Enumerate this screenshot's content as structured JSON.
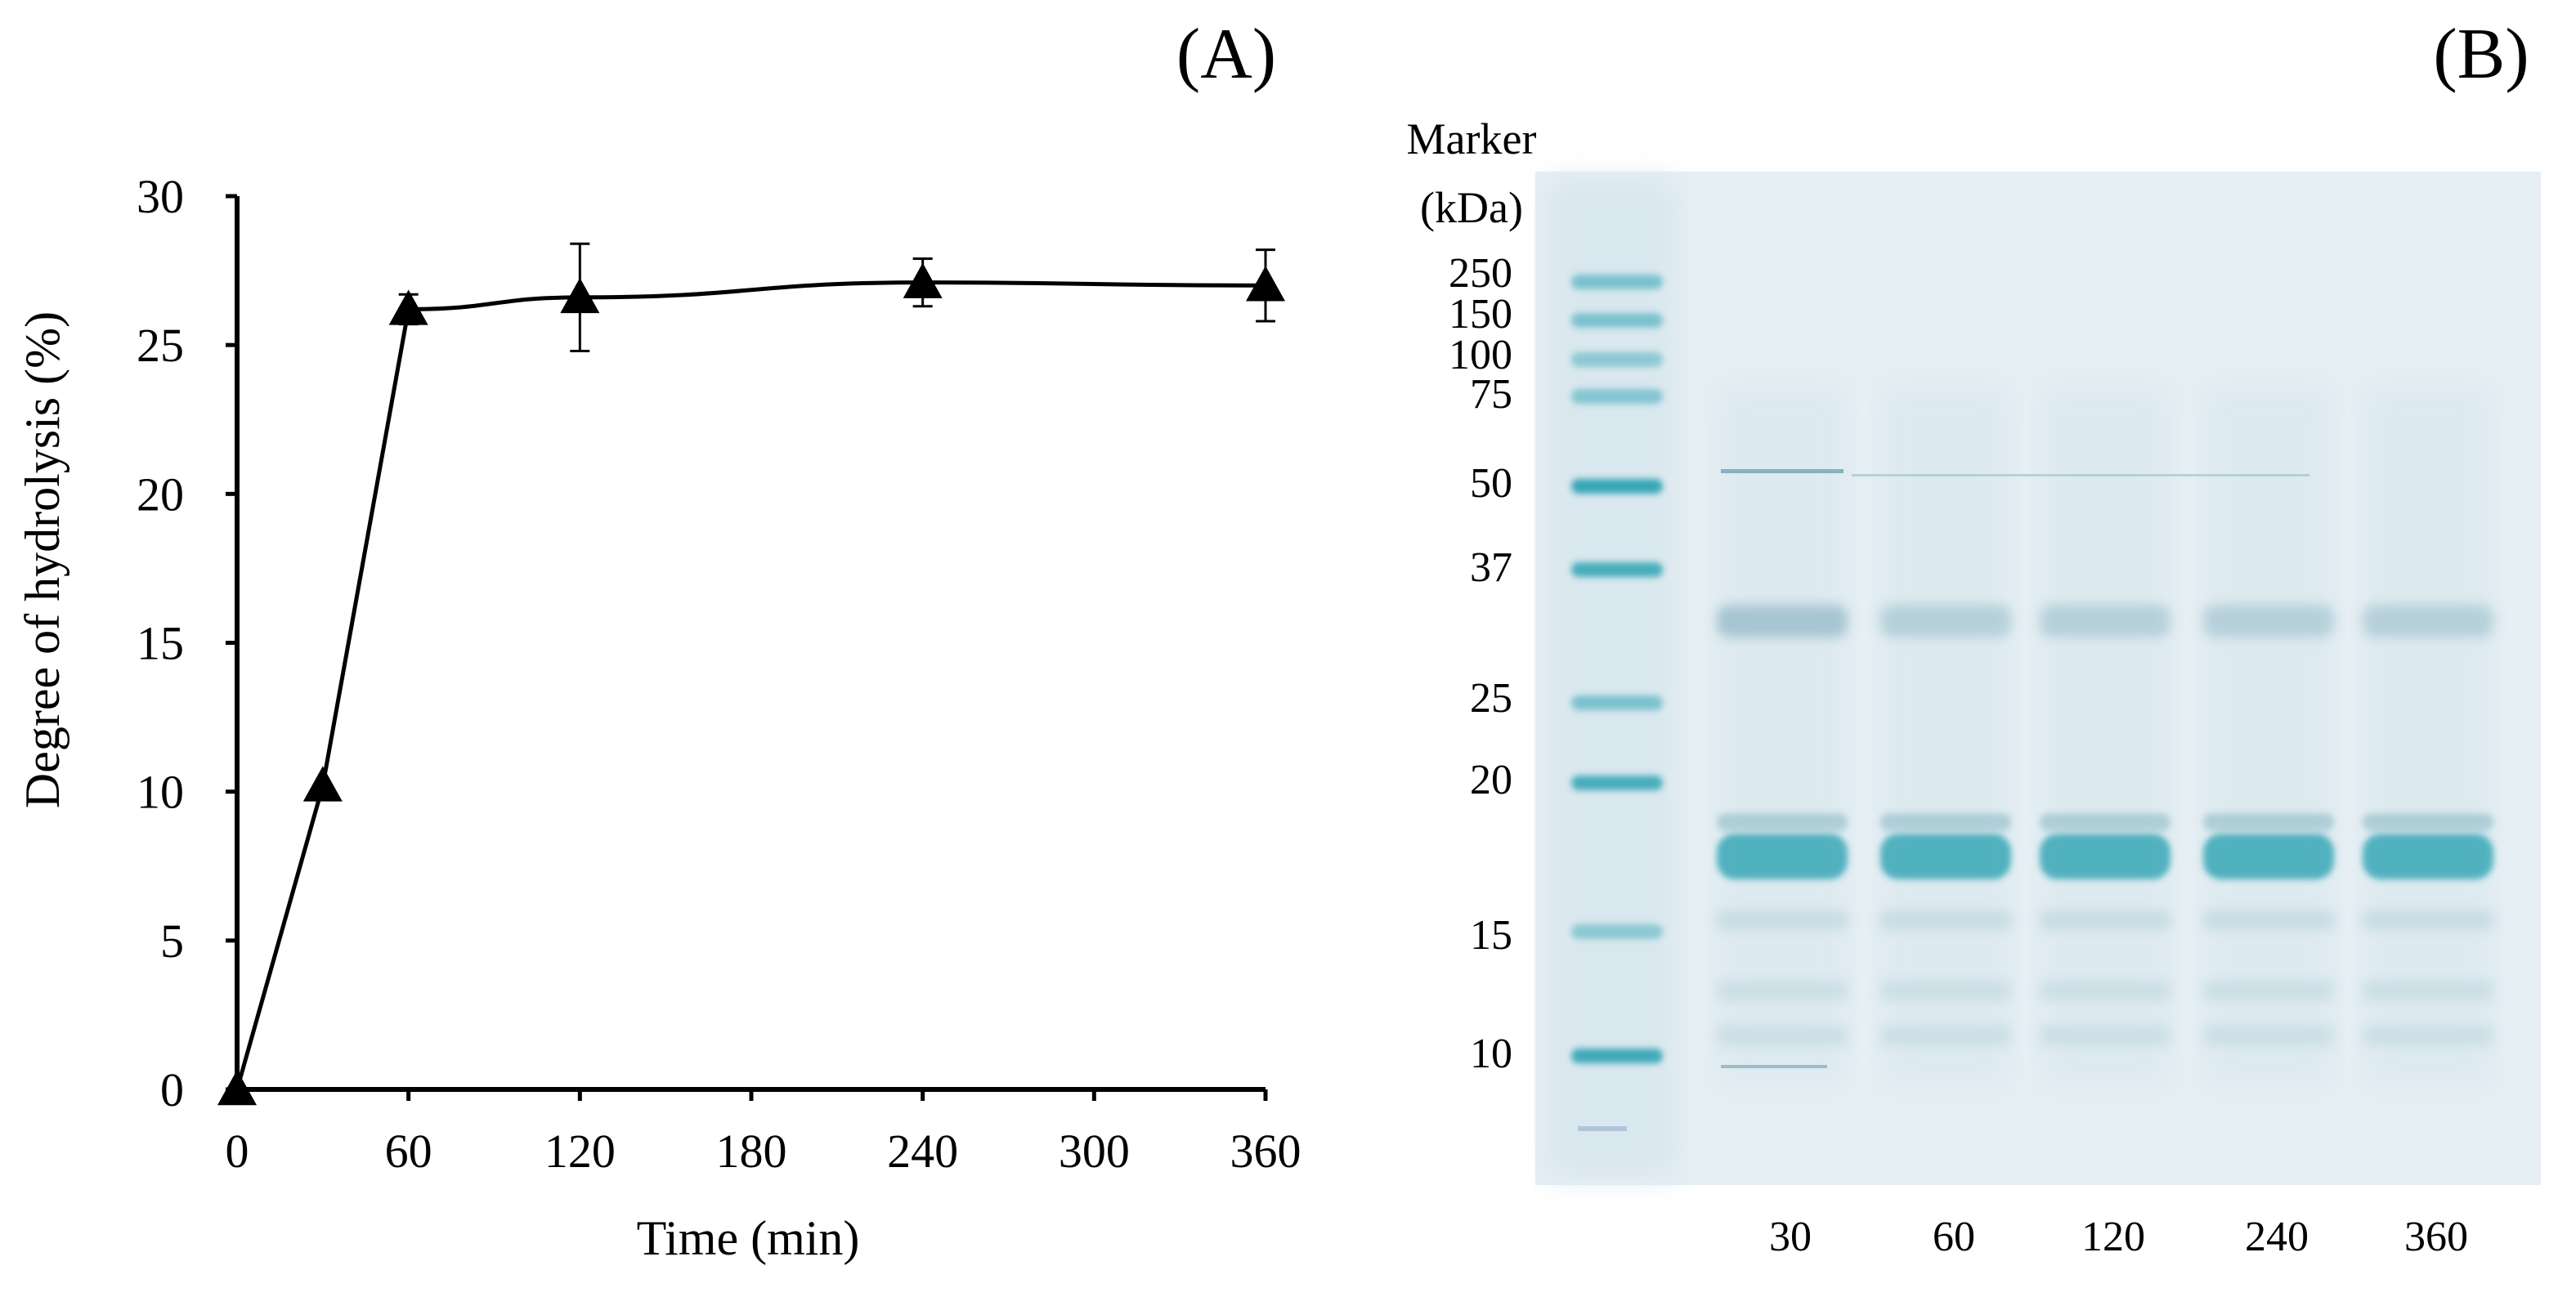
{
  "panel_a": {
    "label": "(A)"
  },
  "panel_b": {
    "label": "(B)",
    "marker_title": "Marker",
    "marker_unit": "(kDa)",
    "marker_labels": [
      {
        "text": "250",
        "kda": 250
      },
      {
        "text": "150",
        "kda": 150
      },
      {
        "text": "100",
        "kda": 100
      },
      {
        "text": "75",
        "kda": 75
      },
      {
        "text": "50",
        "kda": 50
      },
      {
        "text": "37",
        "kda": 37
      },
      {
        "text": "25",
        "kda": 25
      },
      {
        "text": "20",
        "kda": 20
      },
      {
        "text": "15",
        "kda": 15
      },
      {
        "text": "10",
        "kda": 10
      }
    ],
    "lane_labels": [
      "30",
      "60",
      "120",
      "240",
      "360"
    ],
    "colors": {
      "gel_bg": "#e4eef4",
      "band": "#2fa3b3",
      "faint_band": "#a9c9d3"
    }
  },
  "chart_data": {
    "type": "line",
    "xlabel": "Time (min)",
    "ylabel": "Degree of hydrolysis (%)",
    "xlim": [
      0,
      360
    ],
    "ylim": [
      0,
      30
    ],
    "xticks": [
      0,
      60,
      120,
      180,
      240,
      300,
      360
    ],
    "yticks": [
      0,
      5,
      10,
      15,
      20,
      25,
      30
    ],
    "grid": false,
    "marker": "filled-triangle",
    "color": "#000000",
    "x": [
      0,
      30,
      60,
      120,
      240,
      360
    ],
    "y": [
      0,
      10.2,
      26.2,
      26.6,
      27.1,
      27.0
    ],
    "error": [
      0,
      0,
      0.5,
      1.8,
      0.8,
      1.2
    ]
  }
}
